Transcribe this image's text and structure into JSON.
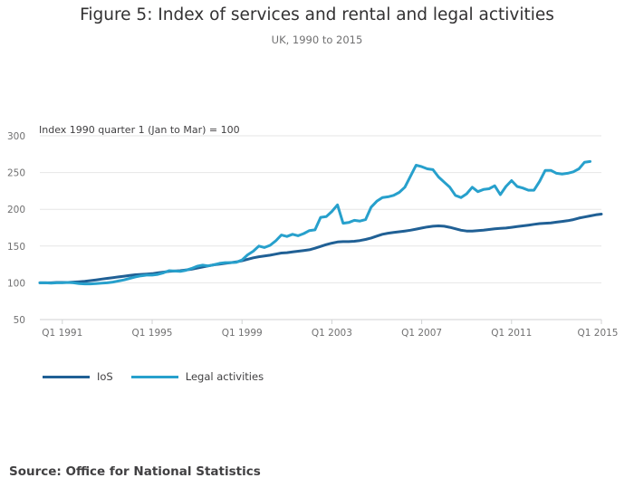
{
  "title": "Figure 5: Index of services and rental and legal activities",
  "subtitle": "UK, 1990 to 2015",
  "source": "Source: Office for National Statistics",
  "chart_data": {
    "type": "line",
    "title": "Figure 5: Index of services and rental and legal activities",
    "subtitle": "UK, 1990 to 2015",
    "ylabel": "Index 1990 quarter 1 (Jan to Mar) = 100",
    "xlabel": "",
    "ylim": [
      50,
      300
    ],
    "yticks": [
      "50",
      "100",
      "150",
      "200",
      "250",
      "300"
    ],
    "xticks": [
      {
        "index": 4,
        "label": "Q1 1991"
      },
      {
        "index": 20,
        "label": "Q1 1995"
      },
      {
        "index": 36,
        "label": "Q1 1999"
      },
      {
        "index": 52,
        "label": "Q1 2003"
      },
      {
        "index": 68,
        "label": "Q1 2007"
      },
      {
        "index": 84,
        "label": "Q1 2011"
      },
      {
        "index": 100,
        "label": "Q1 2015"
      }
    ],
    "grid": true,
    "legend_position": "bottom-left",
    "series": [
      {
        "name": "IoS",
        "color": "#206095",
        "values": [
          100,
          100,
          100,
          100.5,
          100.5,
          100.5,
          101,
          101.5,
          102,
          103,
          104,
          105,
          106,
          107,
          108,
          109,
          110,
          111,
          111.5,
          112,
          112.5,
          113.5,
          114.5,
          115.5,
          116,
          116.5,
          117.5,
          118.5,
          120,
          121.5,
          123,
          124.5,
          125.5,
          126.5,
          127.5,
          128.5,
          130,
          132,
          134,
          135.5,
          136.5,
          137.5,
          139,
          140.5,
          141,
          142,
          143,
          144,
          145,
          147,
          149.5,
          152,
          154,
          155.5,
          156,
          156,
          156.5,
          157.5,
          159,
          161,
          163.5,
          166,
          167.5,
          168.5,
          169.5,
          170.5,
          171.5,
          173,
          174.5,
          176,
          177,
          177.5,
          177,
          175.5,
          173.5,
          171.5,
          170.5,
          170.5,
          171,
          171.5,
          172.5,
          173.5,
          174,
          174.5,
          175.5,
          176.5,
          177.5,
          178.5,
          179.5,
          180.5,
          181,
          181.5,
          182.5,
          183.5,
          184.5,
          186,
          188,
          189.5,
          191,
          192.5,
          193.5
        ]
      },
      {
        "name": "Legal activities",
        "color": "#27a0cc",
        "values": [
          100,
          100,
          99.5,
          100,
          100,
          100.5,
          100,
          99,
          98.5,
          98.5,
          99,
          99.5,
          100,
          101,
          102.5,
          104,
          106,
          108,
          109.5,
          110.5,
          110.5,
          111.5,
          113.5,
          116.5,
          116,
          115.5,
          117,
          119.5,
          122.5,
          124,
          123,
          124.5,
          126.5,
          127.5,
          127.5,
          128,
          131,
          138,
          143,
          150,
          148,
          151,
          157,
          165,
          163,
          166,
          164,
          167,
          171,
          172,
          189,
          190,
          197,
          206,
          181,
          182,
          185,
          184,
          186,
          203,
          211,
          216,
          217,
          219,
          223,
          230,
          245,
          260,
          258,
          255,
          254,
          244,
          237,
          230,
          219,
          216,
          221,
          230,
          224,
          227,
          228,
          232,
          220,
          231,
          239,
          231,
          229,
          226,
          226,
          238,
          253,
          253,
          249,
          248,
          249,
          251,
          255,
          264,
          265
        ]
      }
    ]
  },
  "legend": [
    {
      "label": "IoS",
      "color": "#206095"
    },
    {
      "label": "Legal activities",
      "color": "#27a0cc"
    }
  ]
}
